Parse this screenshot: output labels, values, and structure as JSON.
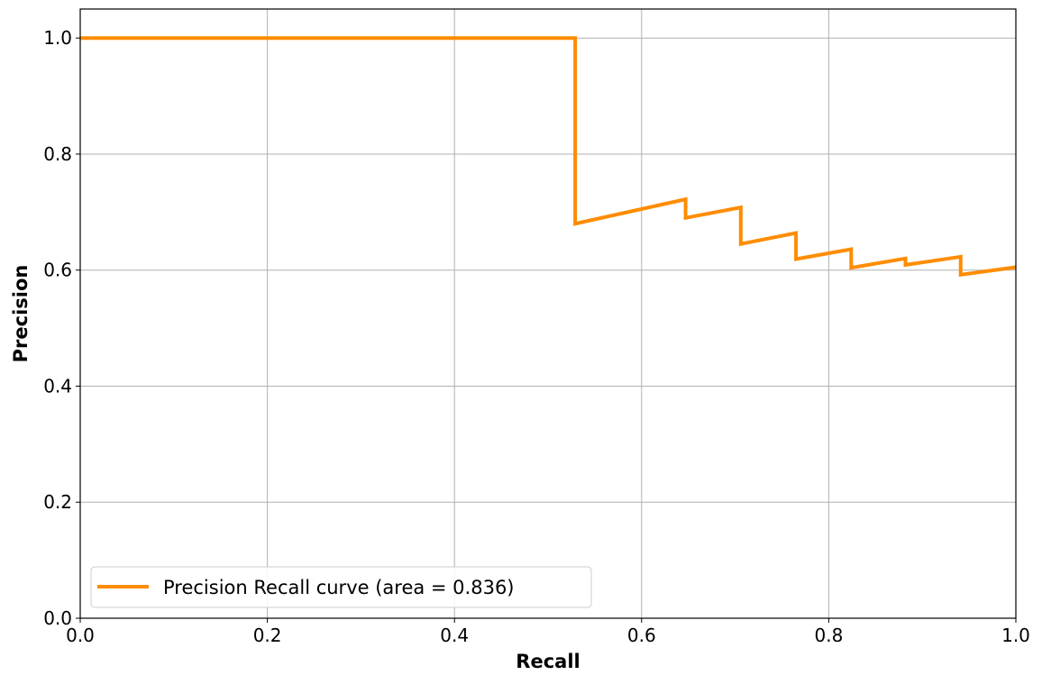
{
  "chart_data": {
    "type": "line",
    "xlabel": "Recall",
    "ylabel": "Precision",
    "xlim": [
      0.0,
      1.0
    ],
    "ylim": [
      0.0,
      1.05
    ],
    "x_ticks": [
      "0.0",
      "0.2",
      "0.4",
      "0.6",
      "0.8",
      "1.0"
    ],
    "y_ticks": [
      "0.0",
      "0.2",
      "0.4",
      "0.6",
      "0.8",
      "1.0"
    ],
    "grid": true,
    "legend_position": "lower-left",
    "series": [
      {
        "name": "Precision Recall curve (area = 0.836)",
        "color": "#ff8c00",
        "points": [
          {
            "x": 0.0,
            "y": 1.0
          },
          {
            "x": 0.529,
            "y": 1.0
          },
          {
            "x": 0.529,
            "y": 0.68
          },
          {
            "x": 0.647,
            "y": 0.722
          },
          {
            "x": 0.647,
            "y": 0.69
          },
          {
            "x": 0.706,
            "y": 0.708
          },
          {
            "x": 0.706,
            "y": 0.645
          },
          {
            "x": 0.765,
            "y": 0.664
          },
          {
            "x": 0.765,
            "y": 0.619
          },
          {
            "x": 0.824,
            "y": 0.636
          },
          {
            "x": 0.824,
            "y": 0.604
          },
          {
            "x": 0.882,
            "y": 0.62
          },
          {
            "x": 0.882,
            "y": 0.609
          },
          {
            "x": 0.941,
            "y": 0.623
          },
          {
            "x": 0.941,
            "y": 0.592
          },
          {
            "x": 1.0,
            "y": 0.605
          }
        ]
      }
    ]
  }
}
